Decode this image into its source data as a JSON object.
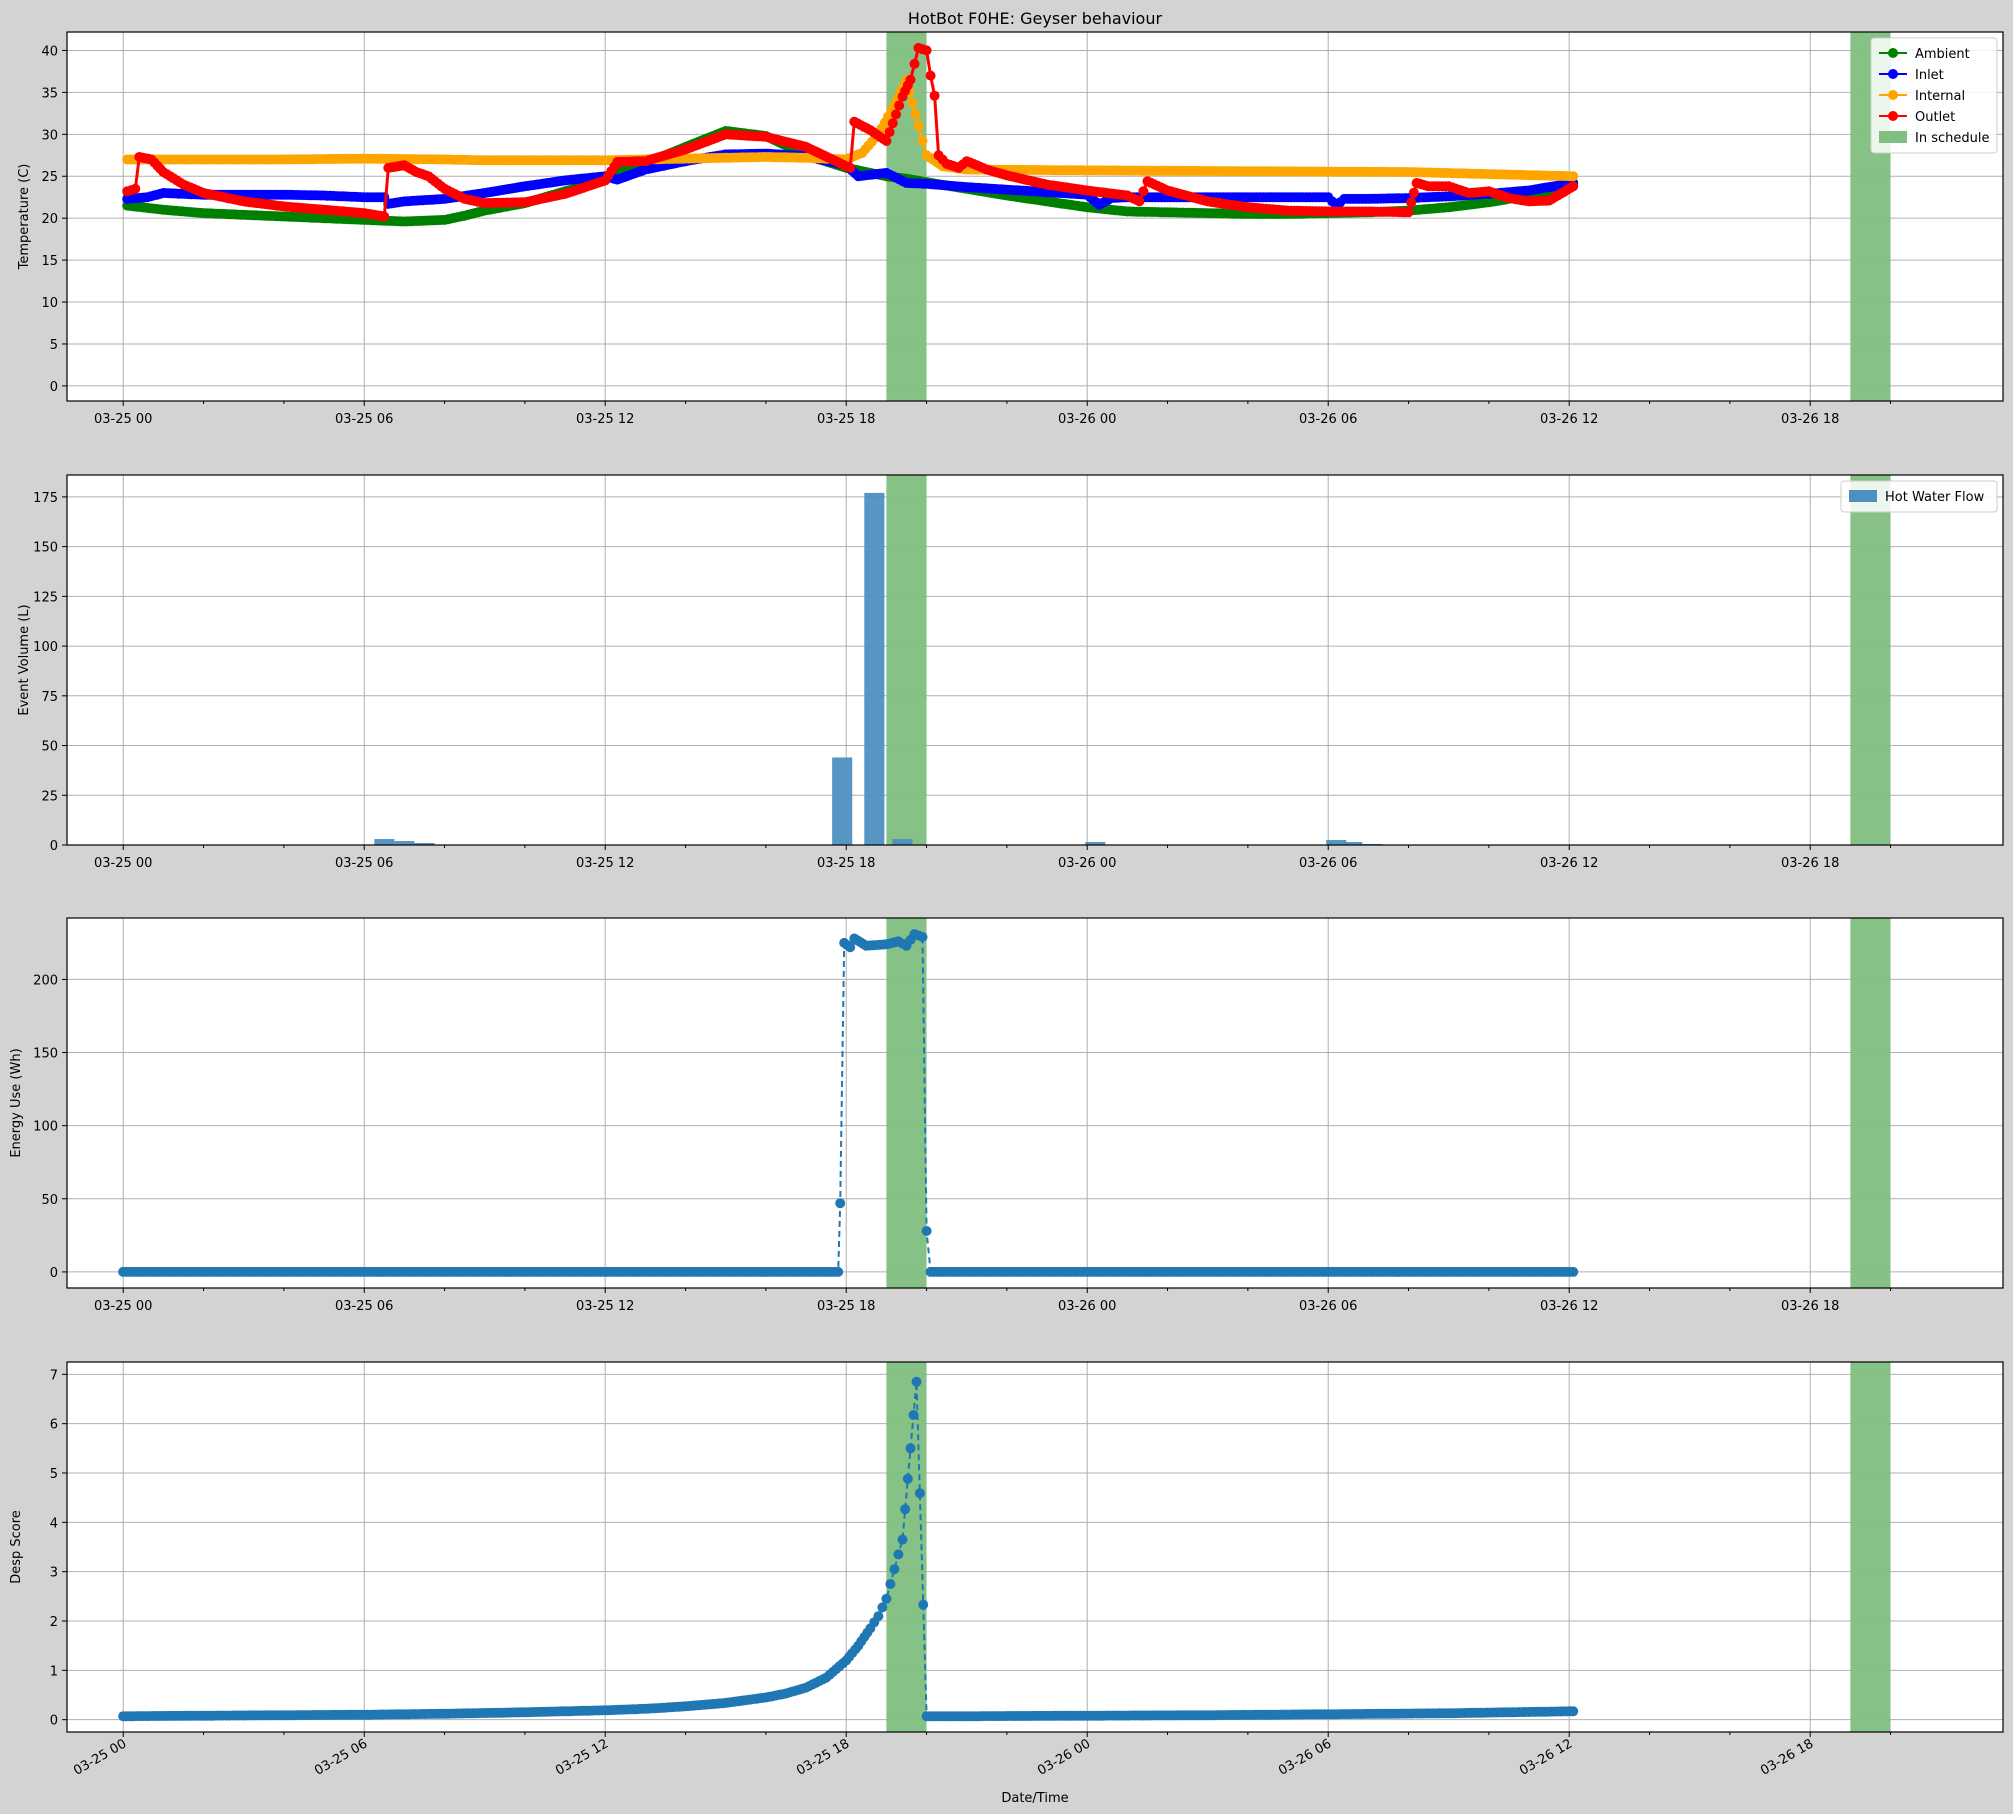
{
  "figure": {
    "title": "HotBot F0HE: Geyser behaviour",
    "xlabel": "Date/Time",
    "xlim_hours": [
      -1.4,
      46.8
    ],
    "x_ticks": [
      {
        "h": 0,
        "label": "03-25 00"
      },
      {
        "h": 6,
        "label": "03-25 06"
      },
      {
        "h": 12,
        "label": "03-25 12"
      },
      {
        "h": 18,
        "label": "03-25 18"
      },
      {
        "h": 24,
        "label": "03-26 00"
      },
      {
        "h": 30,
        "label": "03-26 06"
      },
      {
        "h": 36,
        "label": "03-26 12"
      },
      {
        "h": 42,
        "label": "03-26 18"
      }
    ],
    "schedule_windows_hours": [
      [
        19.0,
        20.0
      ],
      [
        43.0,
        44.0
      ]
    ],
    "colors": {
      "ambient": "#008000",
      "inlet": "#0000ff",
      "internal": "#ffa500",
      "outlet": "#ff0000",
      "schedule": "#7fbf7f",
      "series_blue": "#1f77b4",
      "flow_bar": "#4d8fc1"
    }
  },
  "chart_data": [
    {
      "type": "line",
      "ylabel": "Temperature (C)",
      "ylim": [
        -1.8,
        42.2
      ],
      "yticks": [
        0,
        5,
        10,
        15,
        20,
        25,
        30,
        35,
        40
      ],
      "legend": "top-right",
      "series": [
        {
          "name": "Ambient",
          "color": "#008000",
          "points": [
            [
              0.1,
              21.5
            ],
            [
              1,
              21.0
            ],
            [
              2,
              20.6
            ],
            [
              3,
              20.4
            ],
            [
              4,
              20.2
            ],
            [
              5,
              20.0
            ],
            [
              6,
              19.8
            ],
            [
              7,
              19.6
            ],
            [
              8,
              19.8
            ],
            [
              8.5,
              20.3
            ],
            [
              9,
              20.9
            ],
            [
              10,
              21.8
            ],
            [
              11,
              23.2
            ],
            [
              12,
              24.5
            ],
            [
              12.2,
              25.5
            ],
            [
              13,
              26.5
            ],
            [
              14,
              28.5
            ],
            [
              15,
              30.4
            ],
            [
              16,
              29.8
            ],
            [
              17,
              27.5
            ],
            [
              18,
              26.0
            ],
            [
              19,
              25.0
            ],
            [
              19.5,
              24.7
            ],
            [
              20,
              24.3
            ],
            [
              21,
              23.5
            ],
            [
              22,
              22.7
            ],
            [
              23,
              22.0
            ],
            [
              24,
              21.3
            ],
            [
              25,
              20.8
            ],
            [
              26,
              20.7
            ],
            [
              27,
              20.6
            ],
            [
              28,
              20.5
            ],
            [
              29,
              20.5
            ],
            [
              30,
              20.6
            ],
            [
              31,
              20.7
            ],
            [
              32,
              20.9
            ],
            [
              33,
              21.3
            ],
            [
              34,
              21.9
            ],
            [
              35,
              22.7
            ],
            [
              35.8,
              23.6
            ],
            [
              36.1,
              23.9
            ]
          ]
        },
        {
          "name": "Inlet",
          "color": "#0000ff",
          "points": [
            [
              0.1,
              22.3
            ],
            [
              0.6,
              22.5
            ],
            [
              1,
              23.0
            ],
            [
              2,
              22.8
            ],
            [
              3,
              22.8
            ],
            [
              4,
              22.8
            ],
            [
              5,
              22.7
            ],
            [
              6,
              22.5
            ],
            [
              6.5,
              22.5
            ],
            [
              6.6,
              21.7
            ],
            [
              7,
              22.0
            ],
            [
              8,
              22.3
            ],
            [
              9,
              23.0
            ],
            [
              10,
              23.8
            ],
            [
              11,
              24.5
            ],
            [
              12,
              25.0
            ],
            [
              12.3,
              24.6
            ],
            [
              13,
              25.8
            ],
            [
              14,
              26.8
            ],
            [
              15,
              27.6
            ],
            [
              16,
              27.7
            ],
            [
              17,
              27.4
            ],
            [
              18,
              26.3
            ],
            [
              18.3,
              25.0
            ],
            [
              19,
              25.4
            ],
            [
              19.5,
              24.2
            ],
            [
              20,
              24.1
            ],
            [
              21,
              23.7
            ],
            [
              22,
              23.4
            ],
            [
              23,
              23.1
            ],
            [
              24,
              22.8
            ],
            [
              24.3,
              21.6
            ],
            [
              24.6,
              22.4
            ],
            [
              25,
              22.5
            ],
            [
              26,
              22.5
            ],
            [
              27,
              22.5
            ],
            [
              28,
              22.5
            ],
            [
              29,
              22.5
            ],
            [
              30,
              22.5
            ],
            [
              30.2,
              21.5
            ],
            [
              30.4,
              22.3
            ],
            [
              31,
              22.3
            ],
            [
              32,
              22.4
            ],
            [
              33,
              22.6
            ],
            [
              34,
              22.9
            ],
            [
              35,
              23.3
            ],
            [
              36.1,
              24.2
            ]
          ]
        },
        {
          "name": "Internal",
          "color": "#ffa500",
          "points": [
            [
              0.1,
              27.0
            ],
            [
              2,
              27.0
            ],
            [
              4,
              27.0
            ],
            [
              6,
              27.1
            ],
            [
              8,
              27.0
            ],
            [
              9,
              26.9
            ],
            [
              12,
              26.9
            ],
            [
              14,
              27.1
            ],
            [
              16,
              27.3
            ],
            [
              17,
              27.2
            ],
            [
              18,
              27.0
            ],
            [
              18.4,
              27.8
            ],
            [
              18.8,
              30.0
            ],
            [
              19.2,
              33.5
            ],
            [
              19.5,
              36.5
            ],
            [
              19.8,
              31.0
            ],
            [
              20,
              27.5
            ],
            [
              20.4,
              26.2
            ],
            [
              21,
              25.8
            ],
            [
              24,
              25.7
            ],
            [
              28,
              25.6
            ],
            [
              32,
              25.5
            ],
            [
              36.1,
              25.0
            ]
          ]
        },
        {
          "name": "Outlet",
          "color": "#ff0000",
          "points": [
            [
              0.1,
              23.2
            ],
            [
              0.3,
              23.5
            ],
            [
              0.4,
              27.3
            ],
            [
              0.7,
              27.0
            ],
            [
              1,
              25.5
            ],
            [
              1.5,
              24.0
            ],
            [
              2,
              23.0
            ],
            [
              3,
              22.0
            ],
            [
              4,
              21.4
            ],
            [
              5,
              21.0
            ],
            [
              6,
              20.6
            ],
            [
              6.5,
              20.2
            ],
            [
              6.6,
              26.0
            ],
            [
              7,
              26.3
            ],
            [
              7.3,
              25.5
            ],
            [
              7.6,
              25.0
            ],
            [
              8,
              23.5
            ],
            [
              8.5,
              22.3
            ],
            [
              9,
              21.8
            ],
            [
              10,
              21.9
            ],
            [
              11,
              22.9
            ],
            [
              12,
              24.5
            ],
            [
              12.3,
              26.7
            ],
            [
              13,
              26.8
            ],
            [
              14,
              28.2
            ],
            [
              15,
              30.0
            ],
            [
              16,
              29.7
            ],
            [
              17,
              28.5
            ],
            [
              18,
              26.2
            ],
            [
              18.1,
              26.0
            ],
            [
              18.2,
              31.5
            ],
            [
              18.6,
              30.5
            ],
            [
              19.0,
              29.2
            ],
            [
              19.4,
              34.5
            ],
            [
              19.6,
              36.5
            ],
            [
              19.8,
              40.3
            ],
            [
              20.0,
              40.0
            ],
            [
              20.1,
              37.0
            ],
            [
              20.2,
              34.6
            ],
            [
              20.3,
              27.5
            ],
            [
              20.5,
              26.5
            ],
            [
              20.8,
              26.0
            ],
            [
              21,
              26.8
            ],
            [
              21.5,
              25.8
            ],
            [
              22,
              25.1
            ],
            [
              23,
              24.0
            ],
            [
              24,
              23.3
            ],
            [
              25,
              22.7
            ],
            [
              25.3,
              22.0
            ],
            [
              25.5,
              24.4
            ],
            [
              26,
              23.3
            ],
            [
              27,
              22.0
            ],
            [
              28,
              21.3
            ],
            [
              29,
              20.9
            ],
            [
              30,
              20.8
            ],
            [
              31,
              20.8
            ],
            [
              32,
              20.7
            ],
            [
              32.2,
              24.2
            ],
            [
              32.5,
              23.8
            ],
            [
              33,
              23.8
            ],
            [
              33.5,
              23.0
            ],
            [
              34,
              23.2
            ],
            [
              34.5,
              22.4
            ],
            [
              35,
              22.0
            ],
            [
              35.5,
              22.1
            ],
            [
              36.1,
              23.8
            ]
          ]
        }
      ],
      "schedule_label": "In schedule"
    },
    {
      "type": "bar",
      "ylabel": "Event Volume (L)",
      "ylim": [
        0,
        186
      ],
      "yticks": [
        0,
        25,
        50,
        75,
        100,
        125,
        150,
        175
      ],
      "legend": "top-right",
      "series": [
        {
          "name": "Hot Water Flow",
          "color": "#4d8fc1",
          "bars": [
            [
              6.5,
              3
            ],
            [
              7.0,
              2
            ],
            [
              7.5,
              1
            ],
            [
              17.9,
              44
            ],
            [
              18.7,
              177
            ],
            [
              19.4,
              3
            ],
            [
              24.2,
              1.5
            ],
            [
              30.2,
              2.5
            ],
            [
              30.6,
              1.5
            ],
            [
              31.1,
              0.5
            ]
          ]
        }
      ]
    },
    {
      "type": "line",
      "ylabel": "Energy Use (Wh)",
      "ylim": [
        -11,
        242
      ],
      "yticks": [
        0,
        50,
        100,
        150,
        200
      ],
      "series": [
        {
          "name": "",
          "color": "#1f77b4",
          "points": [
            [
              0,
              0
            ],
            [
              17.8,
              0
            ],
            [
              17.85,
              47
            ],
            [
              17.95,
              225
            ],
            [
              18.1,
              222
            ],
            [
              18.2,
              228
            ],
            [
              18.5,
              223
            ],
            [
              19.0,
              224
            ],
            [
              19.3,
              226
            ],
            [
              19.5,
              223
            ],
            [
              19.7,
              231
            ],
            [
              19.9,
              229
            ],
            [
              20.0,
              28
            ],
            [
              20.1,
              0
            ],
            [
              20.4,
              0
            ],
            [
              36.1,
              0
            ]
          ]
        }
      ]
    },
    {
      "type": "line",
      "ylabel": "Desp Score",
      "ylim": [
        -0.25,
        7.25
      ],
      "yticks": [
        0,
        1,
        2,
        3,
        4,
        5,
        6,
        7
      ],
      "series": [
        {
          "name": "",
          "color": "#1f77b4",
          "points": [
            [
              0,
              0.07
            ],
            [
              2,
              0.08
            ],
            [
              4,
              0.09
            ],
            [
              6,
              0.1
            ],
            [
              8,
              0.12
            ],
            [
              10,
              0.15
            ],
            [
              12,
              0.19
            ],
            [
              13,
              0.22
            ],
            [
              14,
              0.27
            ],
            [
              15,
              0.34
            ],
            [
              16,
              0.45
            ],
            [
              16.5,
              0.53
            ],
            [
              17,
              0.65
            ],
            [
              17.5,
              0.85
            ],
            [
              18,
              1.2
            ],
            [
              18.3,
              1.5
            ],
            [
              18.6,
              1.85
            ],
            [
              18.8,
              2.1
            ],
            [
              19.0,
              2.45
            ],
            [
              19.2,
              3.05
            ],
            [
              19.4,
              3.65
            ],
            [
              19.6,
              5.5
            ],
            [
              19.75,
              6.85
            ],
            [
              20.0,
              0.07
            ],
            [
              21,
              0.07
            ],
            [
              24,
              0.08
            ],
            [
              27,
              0.09
            ],
            [
              30,
              0.11
            ],
            [
              33,
              0.13
            ],
            [
              36.1,
              0.17
            ]
          ]
        }
      ]
    }
  ]
}
